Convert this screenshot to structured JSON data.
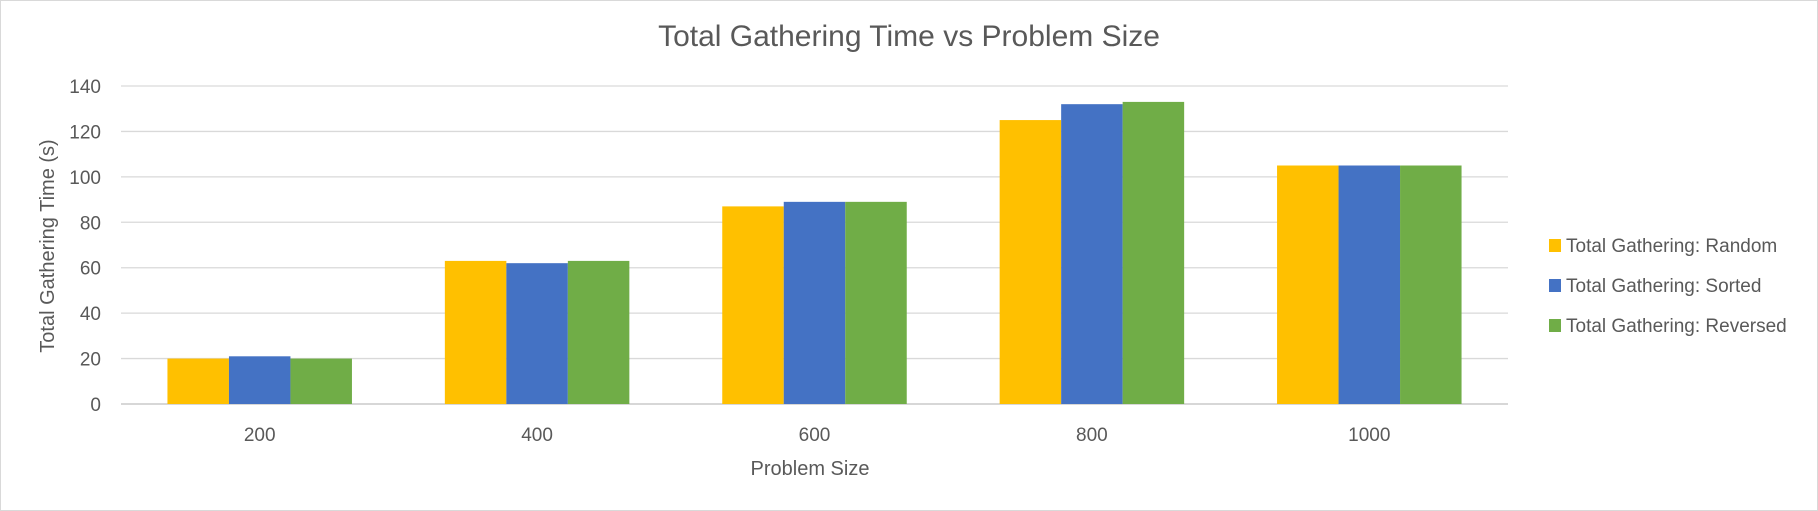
{
  "chart_data": {
    "type": "bar",
    "title": "Total Gathering Time vs Problem Size",
    "xlabel": "Problem Size",
    "ylabel": "Total Gathering Time (s)",
    "categories": [
      "200",
      "400",
      "600",
      "800",
      "1000"
    ],
    "ylim": [
      0,
      140
    ],
    "yticks": [
      0,
      20,
      40,
      60,
      80,
      100,
      120,
      140
    ],
    "grid": true,
    "legend_position": "right",
    "series": [
      {
        "name": "Total Gathering: Random",
        "color": "#FFC000",
        "values": [
          20,
          63,
          87,
          125,
          105
        ]
      },
      {
        "name": "Total Gathering: Sorted",
        "color": "#4472C4",
        "values": [
          21,
          62,
          89,
          132,
          105
        ]
      },
      {
        "name": "Total Gathering: Reversed",
        "color": "#70AD47",
        "values": [
          20,
          63,
          89,
          133,
          105
        ]
      }
    ]
  }
}
